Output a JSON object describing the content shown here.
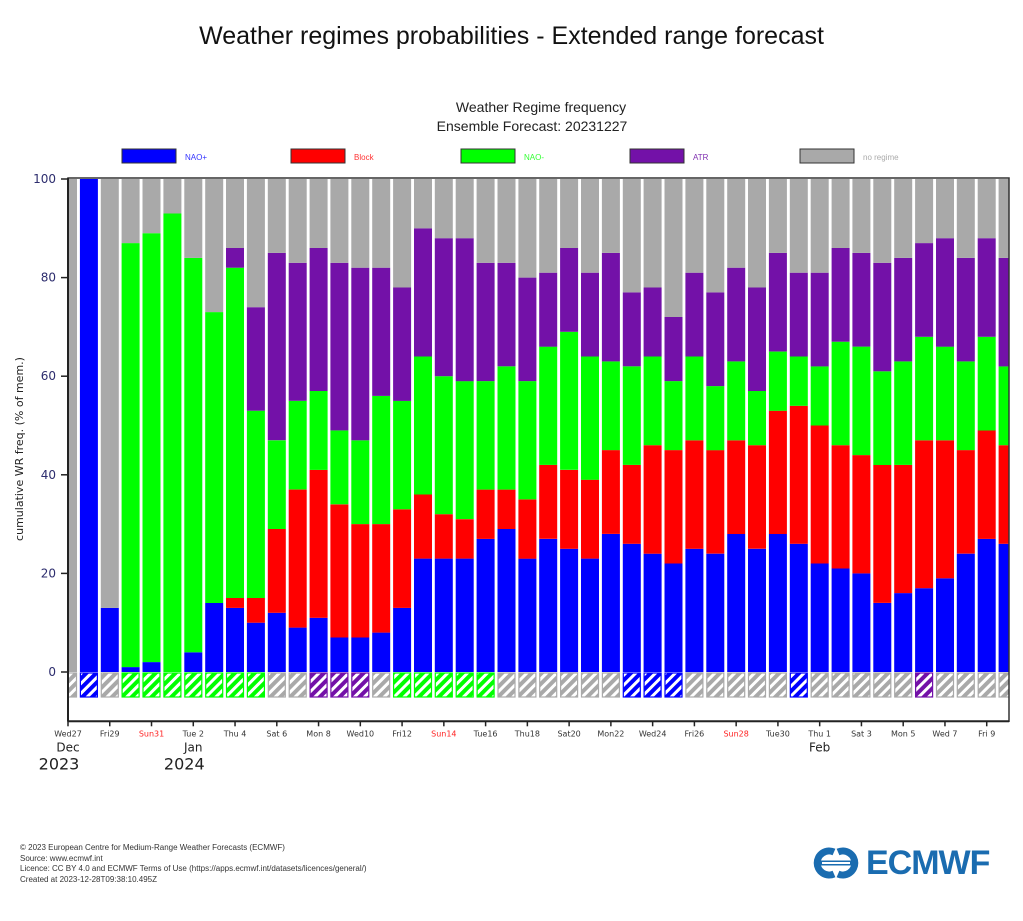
{
  "page": {
    "title": "Weather regimes probabilities - Extended range forecast"
  },
  "footer": {
    "lines": [
      "© 2023 European Centre for Medium-Range Weather Forecasts (ECMWF)",
      "Source: www.ecmwf.int",
      "Licence: CC BY 4.0 and ECMWF Terms of Use (https://apps.ecmwf.int/datasets/licences/general/)",
      "Created at 2023-12-28T09:38:10.495Z"
    ],
    "logo_text": "ECMWF",
    "logo_icon": "ecmwf-logo-icon"
  },
  "chart_data": {
    "type": "bar",
    "stacked": true,
    "title": "Weather Regime frequency",
    "subtitle": "Ensemble Forecast: 20231227",
    "xlabel": "",
    "ylabel": "cumulative WR freq. (% of mem.)",
    "ylim": [
      -10,
      100
    ],
    "yticks": [
      0,
      20,
      40,
      60,
      80,
      100
    ],
    "grid": false,
    "legend_position": "top",
    "colors": {
      "NAO+": "#0000ff",
      "Block": "#ff0000",
      "NAO-": "#00ff00",
      "ATR": "#7311a8",
      "no regime": "#a9a9a9"
    },
    "legend": [
      {
        "name": "NAO+",
        "color": "#0000ff",
        "text_color": "#3333ff"
      },
      {
        "name": "Block",
        "color": "#ff0000",
        "text_color": "#ff3333"
      },
      {
        "name": "NAO-",
        "color": "#00ff00",
        "text_color": "#33ff33"
      },
      {
        "name": "ATR",
        "color": "#7311a8",
        "text_color": "#7f2fb0"
      },
      {
        "name": "no regime",
        "color": "#a9a9a9",
        "text_color": "#aaaaaa"
      }
    ],
    "dates": [
      "2023-12-27",
      "2023-12-28",
      "2023-12-29",
      "2023-12-30",
      "2023-12-31",
      "2024-01-01",
      "2024-01-02",
      "2024-01-03",
      "2024-01-04",
      "2024-01-05",
      "2024-01-06",
      "2024-01-07",
      "2024-01-08",
      "2024-01-09",
      "2024-01-10",
      "2024-01-11",
      "2024-01-12",
      "2024-01-13",
      "2024-01-14",
      "2024-01-15",
      "2024-01-16",
      "2024-01-17",
      "2024-01-18",
      "2024-01-19",
      "2024-01-20",
      "2024-01-21",
      "2024-01-22",
      "2024-01-23",
      "2024-01-24",
      "2024-01-25",
      "2024-01-26",
      "2024-01-27",
      "2024-01-28",
      "2024-01-29",
      "2024-01-30",
      "2024-01-31",
      "2024-02-01",
      "2024-02-02",
      "2024-02-03",
      "2024-02-04",
      "2024-02-05",
      "2024-02-06",
      "2024-02-07",
      "2024-02-08",
      "2024-02-09",
      "2024-02-10"
    ],
    "series": [
      {
        "name": "NAO+",
        "values": [
          0,
          100,
          13,
          1,
          2,
          0,
          4,
          14,
          13,
          10,
          12,
          9,
          11,
          7,
          7,
          8,
          13,
          23,
          23,
          23,
          27,
          29,
          23,
          27,
          25,
          23,
          28,
          26,
          24,
          22,
          25,
          24,
          28,
          25,
          28,
          26,
          22,
          21,
          20,
          14,
          16,
          17,
          19,
          24,
          27,
          26
        ]
      },
      {
        "name": "Block",
        "values": [
          0,
          0,
          0,
          0,
          0,
          0,
          0,
          0,
          2,
          5,
          17,
          28,
          30,
          27,
          23,
          22,
          20,
          13,
          9,
          8,
          10,
          8,
          12,
          15,
          16,
          16,
          17,
          16,
          22,
          23,
          22,
          21,
          19,
          21,
          25,
          28,
          28,
          25,
          24,
          28,
          26,
          30,
          28,
          21,
          22,
          20
        ]
      },
      {
        "name": "NAO-",
        "values": [
          0,
          0,
          0,
          86,
          87,
          93,
          80,
          59,
          67,
          38,
          18,
          18,
          16,
          15,
          17,
          26,
          22,
          28,
          28,
          28,
          22,
          25,
          24,
          24,
          28,
          25,
          18,
          20,
          18,
          14,
          17,
          13,
          16,
          11,
          12,
          10,
          12,
          21,
          22,
          19,
          21,
          21,
          19,
          18,
          19,
          16
        ]
      },
      {
        "name": "ATR",
        "values": [
          0,
          0,
          0,
          0,
          0,
          0,
          0,
          0,
          4,
          21,
          38,
          28,
          29,
          34,
          35,
          26,
          23,
          26,
          28,
          29,
          24,
          21,
          21,
          15,
          17,
          17,
          22,
          15,
          14,
          13,
          17,
          19,
          19,
          21,
          20,
          17,
          19,
          19,
          19,
          22,
          21,
          19,
          22,
          21,
          20,
          22
        ]
      },
      {
        "name": "no regime",
        "values": [
          100,
          0,
          87,
          13,
          11,
          7,
          16,
          27,
          14,
          26,
          15,
          17,
          14,
          17,
          18,
          18,
          22,
          10,
          12,
          12,
          17,
          17,
          20,
          19,
          14,
          19,
          15,
          23,
          22,
          28,
          19,
          23,
          18,
          22,
          15,
          19,
          19,
          14,
          15,
          17,
          16,
          13,
          12,
          16,
          12,
          16
        ]
      }
    ],
    "dominant_regime": [
      "no regime",
      "NAO+",
      "no regime",
      "NAO-",
      "NAO-",
      "NAO-",
      "NAO-",
      "NAO-",
      "NAO-",
      "NAO-",
      "no regime",
      "no regime",
      "ATR",
      "ATR",
      "ATR",
      "no regime",
      "NAO-",
      "NAO-",
      "NAO-",
      "NAO-",
      "NAO-",
      "no regime",
      "no regime",
      "no regime",
      "no regime",
      "no regime",
      "no regime",
      "NAO+",
      "NAO+",
      "NAO+",
      "no regime",
      "no regime",
      "no regime",
      "no regime",
      "no regime",
      "NAO+",
      "no regime",
      "no regime",
      "no regime",
      "no regime",
      "no regime",
      "ATR",
      "no regime",
      "no regime",
      "no regime",
      "no regime"
    ],
    "x_tick_labels": [
      {
        "label": "Wed27",
        "day_index": 0,
        "weekend": false
      },
      {
        "label": "Fri29",
        "day_index": 2,
        "weekend": false
      },
      {
        "label": "Sun31",
        "day_index": 4,
        "weekend": true
      },
      {
        "label": "Tue 2",
        "day_index": 6,
        "weekend": false
      },
      {
        "label": "Thu 4",
        "day_index": 8,
        "weekend": false
      },
      {
        "label": "Sat 6",
        "day_index": 10,
        "weekend": false
      },
      {
        "label": "Mon 8",
        "day_index": 12,
        "weekend": false
      },
      {
        "label": "Wed10",
        "day_index": 14,
        "weekend": false
      },
      {
        "label": "Fri12",
        "day_index": 16,
        "weekend": false
      },
      {
        "label": "Sun14",
        "day_index": 18,
        "weekend": true
      },
      {
        "label": "Tue16",
        "day_index": 20,
        "weekend": false
      },
      {
        "label": "Thu18",
        "day_index": 22,
        "weekend": false
      },
      {
        "label": "Sat20",
        "day_index": 24,
        "weekend": false
      },
      {
        "label": "Mon22",
        "day_index": 26,
        "weekend": false
      },
      {
        "label": "Wed24",
        "day_index": 28,
        "weekend": false
      },
      {
        "label": "Fri26",
        "day_index": 30,
        "weekend": false
      },
      {
        "label": "Sun28",
        "day_index": 32,
        "weekend": true
      },
      {
        "label": "Tue30",
        "day_index": 34,
        "weekend": false
      },
      {
        "label": "Thu 1",
        "day_index": 36,
        "weekend": false
      },
      {
        "label": "Sat 3",
        "day_index": 38,
        "weekend": false
      },
      {
        "label": "Mon 5",
        "day_index": 40,
        "weekend": false
      },
      {
        "label": "Wed 7",
        "day_index": 42,
        "weekend": false
      },
      {
        "label": "Fri 9",
        "day_index": 44,
        "weekend": false
      }
    ],
    "month_labels": [
      {
        "label": "Dec",
        "day_index": 0
      },
      {
        "label": "Jan",
        "day_index": 6
      },
      {
        "label": "Feb",
        "day_index": 36
      }
    ],
    "year_labels": [
      {
        "label": "2023",
        "day_index": 0
      },
      {
        "label": "2024",
        "day_index": 6
      }
    ]
  }
}
